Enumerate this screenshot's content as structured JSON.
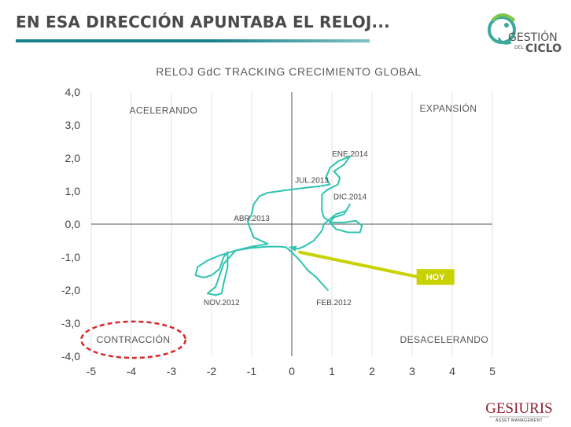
{
  "slide": {
    "title": "EN ESA DIRECCIÓN APUNTABA EL RELOJ..."
  },
  "logo": {
    "line1": "GESTIÓN",
    "line2": "DEL",
    "line3": "CICLO",
    "accent_color": "#3aa89a"
  },
  "footer": {
    "brand": "GESIURIS",
    "tagline": "ASSET MANAGEMENT"
  },
  "chart_data": {
    "type": "line",
    "title": "RELOJ GdC TRACKING CRECIMIENTO GLOBAL",
    "xlim": [
      -5,
      5
    ],
    "ylim": [
      -4,
      4
    ],
    "x_ticks": [
      -5,
      -4,
      -3,
      -2,
      -1,
      0,
      1,
      2,
      3,
      4,
      5
    ],
    "x_tick_labels": [
      "-5",
      "-4",
      "-3",
      "-2",
      "-1",
      "0",
      "1",
      "2",
      "3",
      "4",
      "5"
    ],
    "y_ticks": [
      4,
      3,
      2,
      1,
      0,
      -1,
      -2,
      -3,
      -4
    ],
    "y_tick_labels": [
      "4,0",
      "3,0",
      "2,0",
      "1,0",
      "0,0",
      "-1,0",
      "-2,0",
      "-3,0",
      "-4,0"
    ],
    "grid": "vertical",
    "series_color": "#2ec4b0",
    "points": [
      [
        0.9,
        -2.0
      ],
      [
        0.6,
        -1.6
      ],
      [
        0.4,
        -1.4
      ],
      [
        0.2,
        -1.1
      ],
      [
        0.0,
        -0.85
      ],
      [
        -0.15,
        -0.7
      ],
      [
        -0.3,
        -0.68
      ],
      [
        -0.6,
        -0.68
      ],
      [
        -1.0,
        -0.72
      ],
      [
        -1.4,
        -0.8
      ],
      [
        -1.8,
        -0.95
      ],
      [
        -2.1,
        -1.1
      ],
      [
        -2.35,
        -1.3
      ],
      [
        -2.4,
        -1.55
      ],
      [
        -2.2,
        -1.62
      ],
      [
        -2.0,
        -1.55
      ],
      [
        -1.8,
        -1.35
      ],
      [
        -1.7,
        -1.0
      ],
      [
        -1.6,
        -0.85
      ],
      [
        -1.6,
        -1.3
      ],
      [
        -1.7,
        -1.8
      ],
      [
        -1.75,
        -2.1
      ],
      [
        -1.9,
        -2.15
      ],
      [
        -2.1,
        -2.1
      ],
      [
        -1.9,
        -1.9
      ],
      [
        -1.7,
        -1.2
      ],
      [
        -1.4,
        -0.8
      ],
      [
        -1.0,
        -0.68
      ],
      [
        -0.6,
        -0.6
      ],
      [
        -0.95,
        -0.4
      ],
      [
        -1.05,
        -0.1
      ],
      [
        -1.1,
        0.1
      ],
      [
        -1.0,
        0.3
      ],
      [
        -0.95,
        0.6
      ],
      [
        -0.8,
        0.85
      ],
      [
        -0.6,
        0.95
      ],
      [
        -0.3,
        1.0
      ],
      [
        0.0,
        1.05
      ],
      [
        0.35,
        1.1
      ],
      [
        0.7,
        1.15
      ],
      [
        0.95,
        1.2
      ],
      [
        0.85,
        1.4
      ],
      [
        0.95,
        1.7
      ],
      [
        1.15,
        1.9
      ],
      [
        1.45,
        2.05
      ],
      [
        1.3,
        1.8
      ],
      [
        1.05,
        1.6
      ],
      [
        1.2,
        1.4
      ],
      [
        1.15,
        1.2
      ],
      [
        0.9,
        1.05
      ],
      [
        0.75,
        0.9
      ],
      [
        0.75,
        0.4
      ],
      [
        0.8,
        0.2
      ],
      [
        1.0,
        0.05
      ],
      [
        1.3,
        0.05
      ],
      [
        1.6,
        0.1
      ],
      [
        1.75,
        -0.05
      ],
      [
        1.7,
        -0.25
      ],
      [
        1.4,
        -0.25
      ],
      [
        1.1,
        -0.15
      ],
      [
        0.95,
        0.05
      ],
      [
        1.05,
        0.2
      ],
      [
        1.3,
        0.3
      ],
      [
        1.4,
        0.5
      ],
      [
        1.45,
        0.6
      ],
      [
        1.35,
        0.4
      ],
      [
        1.1,
        0.3
      ],
      [
        0.95,
        0.15
      ],
      [
        0.8,
        0.0
      ],
      [
        0.75,
        -0.2
      ],
      [
        0.55,
        -0.5
      ],
      [
        0.3,
        -0.68
      ],
      [
        0.15,
        -0.75
      ],
      [
        -0.05,
        -0.7
      ]
    ],
    "point_labels": [
      {
        "text": "ENE.2014",
        "x": 1.45,
        "y": 2.05
      },
      {
        "text": "JUL.2013",
        "x": 0.5,
        "y": 1.25
      },
      {
        "text": "DIC.2014",
        "x": 1.45,
        "y": 0.75
      },
      {
        "text": "ABR.2013",
        "x": -1.0,
        "y": 0.1
      },
      {
        "text": "NOV.2012",
        "x": -1.75,
        "y": -2.45
      },
      {
        "text": "FEB.2012",
        "x": 1.05,
        "y": -2.45
      }
    ],
    "quadrant_labels": [
      {
        "text": "ACELERANDO",
        "x": -3.2,
        "y": 3.35
      },
      {
        "text": "EXPANSIÓN",
        "x": 3.9,
        "y": 3.4
      },
      {
        "text": "CONTRACCIÓN",
        "x": -3.95,
        "y": -3.6
      },
      {
        "text": "DESACELERANDO",
        "x": 3.8,
        "y": -3.6
      }
    ],
    "callout": {
      "text": "HOY",
      "color": "#c8d200",
      "from": [
        3.15,
        -1.6
      ],
      "to": [
        0.2,
        -0.85
      ]
    },
    "highlight_ellipse": {
      "label_ref": "CONTRACCIÓN",
      "color": "#d62a2a",
      "center": [
        -3.95,
        -3.5
      ],
      "radii": [
        1.3,
        0.55
      ]
    }
  }
}
